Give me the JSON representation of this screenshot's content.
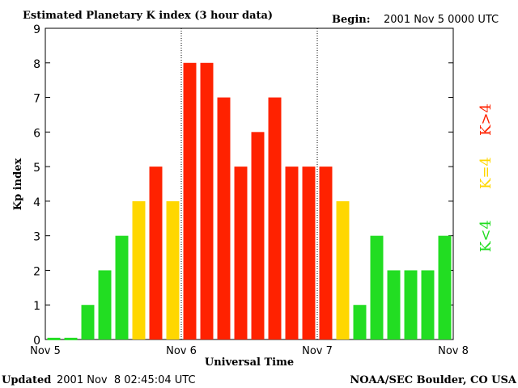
{
  "chart_data": {
    "type": "bar",
    "title": "Estimated Planetary K index (3 hour data)",
    "begin_label": "Begin:",
    "begin_value": "2001 Nov 5 0000 UTC",
    "xlabel": "Universal Time",
    "ylabel": "Kp index",
    "ylim": [
      0,
      9
    ],
    "yticks": [
      "0",
      "1",
      "2",
      "3",
      "4",
      "5",
      "6",
      "7",
      "8",
      "9"
    ],
    "x_ticks": [
      "Nov 5",
      "Nov 6",
      "Nov 7",
      "Nov 8"
    ],
    "day_separators_at_bar_index": [
      8,
      16
    ],
    "values": [
      0.05,
      0.05,
      1,
      2,
      3,
      4,
      5,
      4,
      8,
      8,
      7,
      5,
      6,
      7,
      5,
      5,
      5,
      4,
      1,
      3,
      2,
      2,
      2,
      3
    ],
    "legend": [
      {
        "label": "K<4",
        "color": "#22dd22"
      },
      {
        "label": "K=4",
        "color": "#ffd700"
      },
      {
        "label": "K>4",
        "color": "#ff2200"
      }
    ],
    "colors": {
      "low": "#22dd22",
      "mid": "#ffd700",
      "high": "#ff2200"
    }
  },
  "footer": {
    "updated_label": "Updated",
    "updated_value": "2001 Nov  8 02:45:04 UTC",
    "source": "NOAA/SEC Boulder, CO USA"
  }
}
